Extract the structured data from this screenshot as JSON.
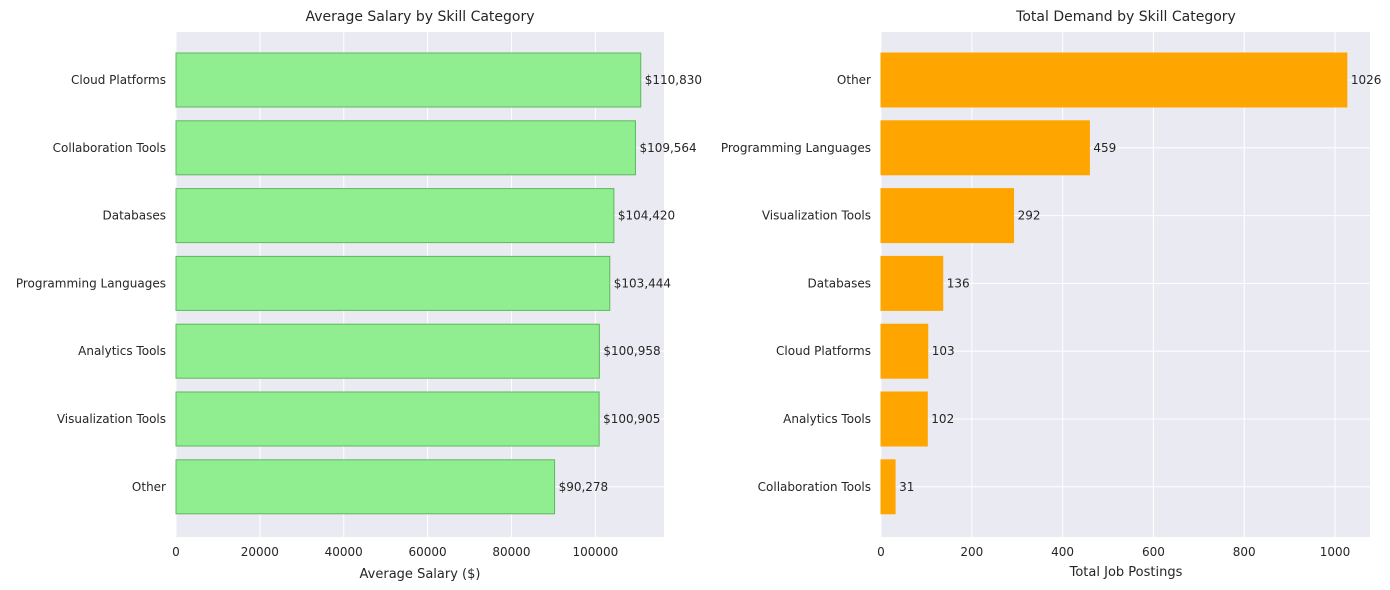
{
  "chart_data": [
    {
      "type": "bar",
      "orientation": "horizontal",
      "title": "Average Salary by Skill Category",
      "xlabel": "Average Salary ($)",
      "ylabel": "",
      "categories": [
        "Cloud Platforms",
        "Collaboration Tools",
        "Databases",
        "Programming Languages",
        "Analytics Tools",
        "Visualization Tools",
        "Other"
      ],
      "values": [
        110830,
        109564,
        104420,
        103444,
        100958,
        100905,
        90278
      ],
      "data_labels": [
        "$110,830",
        "$109,564",
        "$104,420",
        "$103,444",
        "$100,958",
        "$100,905",
        "$90,278"
      ],
      "xlim": [
        0,
        116372
      ],
      "xticks": [
        0,
        20000,
        40000,
        60000,
        80000,
        100000
      ],
      "xtick_labels": [
        "0",
        "20000",
        "40000",
        "60000",
        "80000",
        "100000"
      ],
      "bar_color": "#90ee90",
      "bar_edge_color": "#5cb85c",
      "grid": true,
      "legend": "none"
    },
    {
      "type": "bar",
      "orientation": "horizontal",
      "title": "Total Demand by Skill Category",
      "xlabel": "Total Job Postings",
      "ylabel": "",
      "categories": [
        "Other",
        "Programming Languages",
        "Visualization Tools",
        "Databases",
        "Cloud Platforms",
        "Analytics Tools",
        "Collaboration Tools"
      ],
      "values": [
        1026,
        459,
        292,
        136,
        103,
        102,
        31
      ],
      "data_labels": [
        "1026",
        "459",
        "292",
        "136",
        "103",
        "102",
        "31"
      ],
      "xlim": [
        0,
        1077
      ],
      "xticks": [
        0,
        200,
        400,
        600,
        800,
        1000
      ],
      "xtick_labels": [
        "0",
        "200",
        "400",
        "600",
        "800",
        "1000"
      ],
      "bar_color": "#ffa500",
      "bar_edge_color": "#ffa500",
      "grid": true,
      "legend": "none"
    }
  ]
}
